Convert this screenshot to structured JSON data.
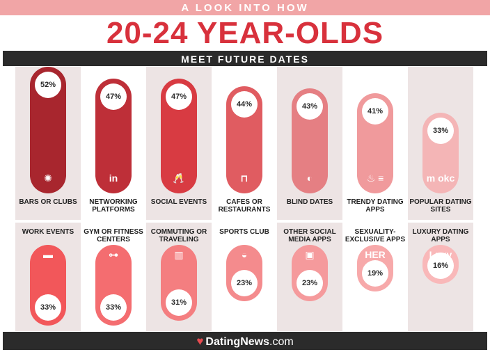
{
  "header": {
    "kicker": "A LOOK INTO HOW",
    "headline": "20-24 YEAR-OLDS",
    "subtitle": "MEET FUTURE DATES"
  },
  "footer": {
    "brand": "DatingNews",
    "brand_suffix": ".com"
  },
  "chart_data": {
    "type": "bar",
    "ylim": [
      0,
      100
    ],
    "rows": [
      {
        "direction": "up",
        "categories": [
          "BARS OR CLUBS",
          "NETWORKING PLATFORMS",
          "SOCIAL EVENTS",
          "CAFES OR RESTAURANTS",
          "BLIND DATES",
          "TRENDY DATING APPS",
          "POPULAR DATING SITES"
        ],
        "values": [
          52,
          47,
          47,
          44,
          43,
          41,
          33
        ],
        "colors": [
          "#a8262e",
          "#be2f38",
          "#d83b42",
          "#e05c61",
          "#e57f83",
          "#f09a9c",
          "#f4b5b6"
        ],
        "icons": [
          "disco-ball-icon",
          "linkedin-icon",
          "champagne-icon",
          "dining-table-icon",
          "mask-icon",
          "tinder-bumble-icon",
          "match-okc-icon"
        ]
      },
      {
        "direction": "down",
        "categories": [
          "WORK EVENTS",
          "GYM OR FITNESS CENTERS",
          "COMMUTING OR TRAVELING",
          "SPORTS CLUB",
          "OTHER SOCIAL MEDIA APPS",
          "SEXUALITY-EXCLUSIVE APPS",
          "LUXURY DATING APPS"
        ],
        "values": [
          33,
          33,
          31,
          23,
          23,
          19,
          16
        ],
        "colors": [
          "#f2575a",
          "#f46d70",
          "#f47e80",
          "#f48b8d",
          "#f59a9c",
          "#f7a9aa",
          "#f9b8b9"
        ],
        "icons": [
          "briefcase-icon",
          "dumbbell-icon",
          "beer-icon",
          "ball-icon",
          "social-apps-icon",
          "her-icon",
          "luxy-icon"
        ]
      }
    ]
  }
}
